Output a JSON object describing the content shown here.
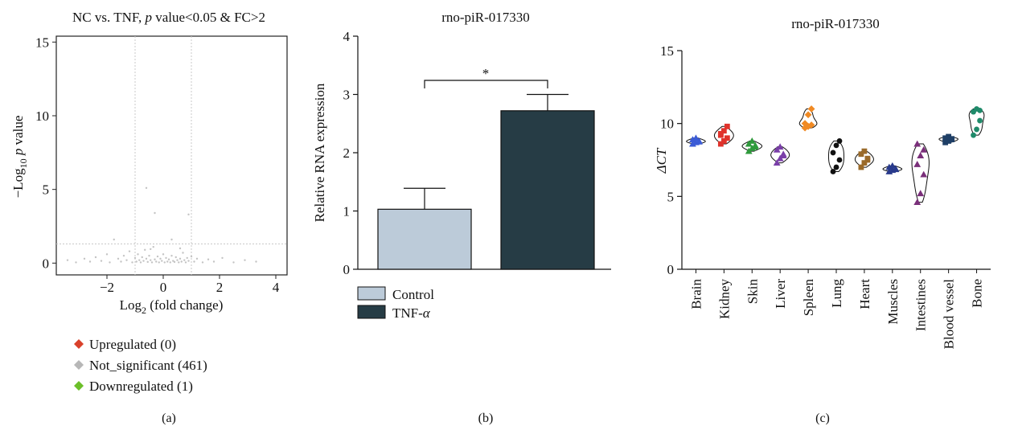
{
  "chart_data": [
    {
      "panel_label": "(a)",
      "type": "scatter",
      "title": "NC vs. TNF, p value<0.05 & FC>2",
      "title_parts": {
        "pre": "NC vs. TNF, ",
        "ital": "p",
        "post": " value<0.05 & FC>2"
      },
      "xlabel": "Log2 (fold change)",
      "xlabel_parts": {
        "pre": "Log",
        "sub": "2",
        "post": " (fold change)"
      },
      "ylabel": "−Log10 p value",
      "ylabel_parts": {
        "pre": "−Log",
        "sub": "10",
        "ital": "p",
        "post": " value"
      },
      "xlim": [
        -3.8,
        4.4
      ],
      "ylim": [
        -0.8,
        15.4
      ],
      "xticks": [
        -2,
        0,
        2,
        4
      ],
      "xtick_labels": [
        "−2",
        "0",
        "2",
        "4"
      ],
      "yticks": [
        0,
        5,
        10,
        15
      ],
      "threshold_x": [
        -1,
        1
      ],
      "threshold_y": 1.3,
      "legend": [
        {
          "label": "Upregulated (0)",
          "color": "#d9412b"
        },
        {
          "label": "Not_significant (461)",
          "color": "#b7b7b7"
        },
        {
          "label": "Downregulated (1)",
          "color": "#6cbf2a"
        }
      ],
      "points": [
        [
          -3.4,
          0.2
        ],
        [
          -3.1,
          0.05
        ],
        [
          -2.8,
          0.3
        ],
        [
          -2.6,
          0.1
        ],
        [
          -2.4,
          0.4
        ],
        [
          -2.2,
          0.15
        ],
        [
          -2.0,
          0.6
        ],
        [
          -1.9,
          0.05
        ],
        [
          -1.75,
          1.6
        ],
        [
          -1.6,
          0.3
        ],
        [
          -1.5,
          0.1
        ],
        [
          -1.4,
          0.5
        ],
        [
          -1.3,
          0.2
        ],
        [
          -1.2,
          0.8
        ],
        [
          -1.1,
          0.05
        ],
        [
          -1.0,
          0.35
        ],
        [
          -0.95,
          0.1
        ],
        [
          -0.9,
          0.6
        ],
        [
          -0.85,
          0.2
        ],
        [
          -0.8,
          0.05
        ],
        [
          -0.75,
          0.4
        ],
        [
          -0.7,
          0.15
        ],
        [
          -0.65,
          0.9
        ],
        [
          -0.6,
          0.3
        ],
        [
          -0.55,
          0.08
        ],
        [
          -0.5,
          0.5
        ],
        [
          -0.45,
          0.2
        ],
        [
          -0.4,
          0.05
        ],
        [
          -0.35,
          1.1
        ],
        [
          -0.3,
          0.25
        ],
        [
          -0.25,
          0.1
        ],
        [
          -0.2,
          0.45
        ],
        [
          -0.15,
          0.05
        ],
        [
          -0.1,
          0.3
        ],
        [
          -0.05,
          0.15
        ],
        [
          0.0,
          0.6
        ],
        [
          0.05,
          0.05
        ],
        [
          0.1,
          0.35
        ],
        [
          0.15,
          0.1
        ],
        [
          0.2,
          0.25
        ],
        [
          0.25,
          0.05
        ],
        [
          0.3,
          0.5
        ],
        [
          0.35,
          0.15
        ],
        [
          0.4,
          0.08
        ],
        [
          0.45,
          0.4
        ],
        [
          0.5,
          0.2
        ],
        [
          0.55,
          0.05
        ],
        [
          0.6,
          0.3
        ],
        [
          0.65,
          0.1
        ],
        [
          0.7,
          0.7
        ],
        [
          0.75,
          0.2
        ],
        [
          0.8,
          0.05
        ],
        [
          0.85,
          0.35
        ],
        [
          0.9,
          0.15
        ],
        [
          1.0,
          0.45
        ],
        [
          1.1,
          0.1
        ],
        [
          1.2,
          0.3
        ],
        [
          1.4,
          0.05
        ],
        [
          1.6,
          0.25
        ],
        [
          1.8,
          0.1
        ],
        [
          2.1,
          0.35
        ],
        [
          2.5,
          0.05
        ],
        [
          2.9,
          0.2
        ],
        [
          3.3,
          0.1
        ],
        [
          -0.3,
          3.4
        ],
        [
          0.9,
          3.3
        ],
        [
          -0.6,
          5.1
        ],
        [
          0.3,
          1.6
        ],
        [
          -0.45,
          0.95
        ],
        [
          0.6,
          1.0
        ]
      ]
    },
    {
      "panel_label": "(b)",
      "type": "bar",
      "title": "rno-piR-017330",
      "ylabel": "Relative RNA expression",
      "ylim": [
        0,
        4
      ],
      "yticks": [
        0,
        1,
        2,
        3,
        4
      ],
      "categories": [
        "Control",
        "TNF-α"
      ],
      "legend_parts": [
        {
          "pre": "Control",
          "ital": ""
        },
        {
          "pre": "TNF-",
          "ital": "α"
        }
      ],
      "values": [
        1.03,
        2.72
      ],
      "errors": [
        0.36,
        0.28
      ],
      "colors": [
        "#bccbd9",
        "#263c45"
      ],
      "significance": "*"
    },
    {
      "panel_label": "(c)",
      "type": "violin",
      "title": "rno-piR-017330",
      "ylabel": "ΔCT",
      "ylim": [
        0,
        15
      ],
      "yticks": [
        0,
        5,
        10,
        15
      ],
      "categories": [
        "Brain",
        "Kidney",
        "Skin",
        "Liver",
        "Spleen",
        "Lung",
        "Heart",
        "Muscles",
        "Intestines",
        "Blood vessel",
        "Bone"
      ],
      "colors": [
        "#3b5bd6",
        "#e0332c",
        "#2f9a3c",
        "#7a3fa8",
        "#f08a24",
        "#111111",
        "#9a6a2a",
        "#283a8c",
        "#7a2f7a",
        "#1f3f66",
        "#1f8a6a"
      ],
      "markers": [
        "triangle",
        "square",
        "triangle",
        "triangle",
        "diamond",
        "circle",
        "square",
        "triangle",
        "triangle",
        "square",
        "circle"
      ],
      "values": [
        [
          8.6,
          8.7,
          8.8,
          8.9,
          9.0,
          8.75
        ],
        [
          8.6,
          8.8,
          9.0,
          9.2,
          9.5,
          9.8,
          9.3
        ],
        [
          8.1,
          8.3,
          8.5,
          8.6,
          8.8,
          8.4
        ],
        [
          7.3,
          7.6,
          7.9,
          8.2,
          8.4,
          7.8
        ],
        [
          9.7,
          9.8,
          9.9,
          10.0,
          10.6,
          11.0
        ],
        [
          6.7,
          7.0,
          7.5,
          8.0,
          8.5,
          8.8
        ],
        [
          7.0,
          7.3,
          7.6,
          7.9,
          8.1,
          7.5
        ],
        [
          6.7,
          6.8,
          6.9,
          7.0,
          7.1,
          6.85
        ],
        [
          4.6,
          5.2,
          6.5,
          7.2,
          7.8,
          8.2,
          8.6
        ],
        [
          8.7,
          8.8,
          8.9,
          9.0,
          9.1,
          8.95
        ],
        [
          9.2,
          9.6,
          10.2,
          10.8,
          11.0,
          10.9
        ]
      ]
    }
  ]
}
